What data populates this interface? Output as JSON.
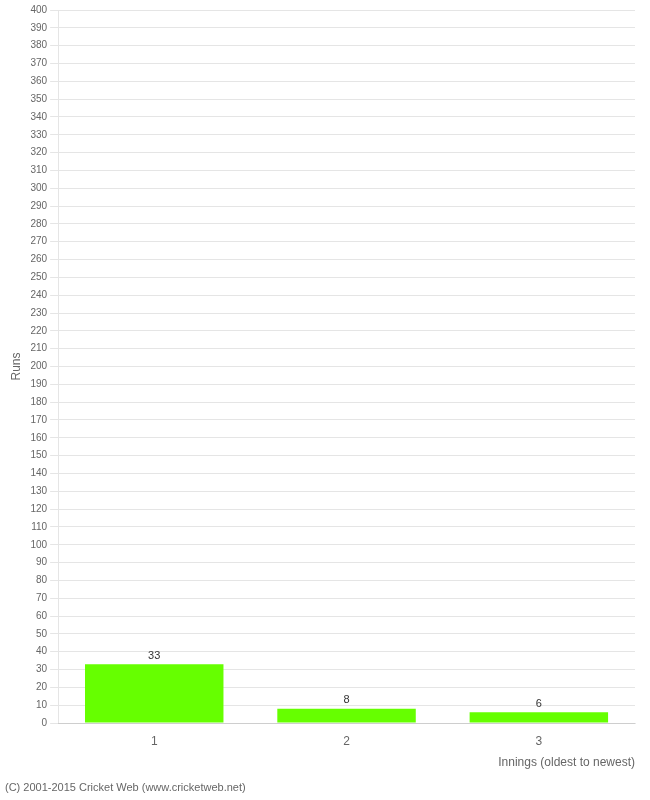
{
  "chart_data": {
    "type": "bar",
    "categories": [
      "1",
      "2",
      "3"
    ],
    "values": [
      33,
      8,
      6
    ],
    "color": "#66ff00",
    "ylabel": "Runs",
    "xlabel": "Innings (oldest to newest)",
    "annotations": [
      "(C) 2001-2015 Cricket Web (www.cricketweb.net)"
    ],
    "ylim": [
      0,
      400
    ],
    "yticks": [
      0,
      10,
      20,
      30,
      40,
      50,
      60,
      70,
      80,
      90,
      100,
      110,
      120,
      130,
      140,
      150,
      160,
      170,
      180,
      190,
      200,
      210,
      220,
      230,
      240,
      250,
      260,
      270,
      280,
      290,
      300,
      310,
      320,
      330,
      340,
      350,
      360,
      370,
      380,
      390,
      400
    ],
    "grid": true,
    "data_labels": true
  }
}
